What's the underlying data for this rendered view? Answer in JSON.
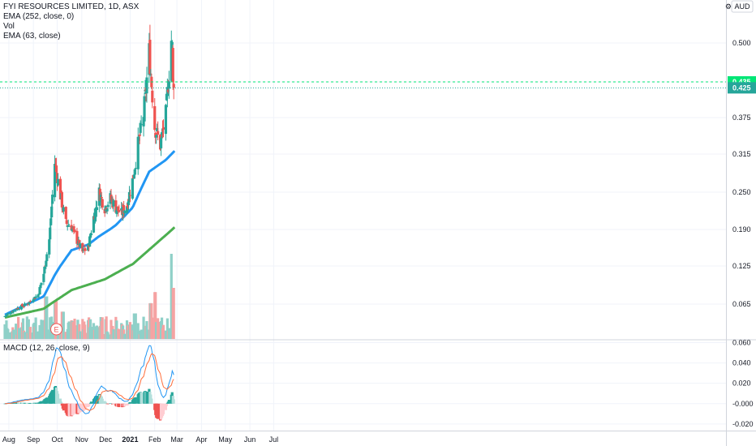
{
  "legend": {
    "title": "FYI RESOURCES LIMITED, 1D, ASX",
    "ema_long": "EMA (252, close, 0)",
    "vol": "Vol",
    "ema_mid": "EMA (63, close)",
    "macd": "MACD (12, 26, close, 9)"
  },
  "currency_label": "AUD",
  "earnings_marker": "E",
  "price_badges": {
    "green": "0.435",
    "teal": "0.425"
  },
  "colors": {
    "up": "#26a69a",
    "down": "#ef5350",
    "up_vol": "#8fd0c8",
    "down_vol": "#f5a3a3",
    "ema63": "#2196f3",
    "ema252": "#4caf50",
    "macd": "#2196f3",
    "signal": "#ff6d3a",
    "dashed_green": "#00e676",
    "dashed_teal": "#26a69a"
  },
  "chart_data": [
    {
      "type": "candlestick",
      "title": "FYI RESOURCES LIMITED, 1D, ASX",
      "y_ticks": [
        "0.500",
        "0.435",
        "0.375",
        "0.315",
        "0.250",
        "0.190",
        "0.125",
        "0.065"
      ],
      "x_ticks": [
        "Aug",
        "Sep",
        "Oct",
        "Nov",
        "Dec",
        "2021",
        "Feb",
        "Mar",
        "Apr",
        "May",
        "Jun",
        "Jul"
      ],
      "ylim": [
        0.013,
        0.548
      ],
      "series": [
        {
          "name": "EMA (63, close)",
          "type": "line"
        },
        {
          "name": "EMA (252, close, 0)",
          "type": "line"
        },
        {
          "name": "Vol",
          "type": "bar"
        }
      ],
      "close_anchors": [
        [
          "2020-07-27",
          0.047
        ],
        [
          "2020-08-10",
          0.058
        ],
        [
          "2020-08-24",
          0.065
        ],
        [
          "2020-09-07",
          0.08
        ],
        [
          "2020-09-14",
          0.113
        ],
        [
          "2020-09-21",
          0.172
        ],
        [
          "2020-09-28",
          0.3
        ],
        [
          "2020-10-05",
          0.245
        ],
        [
          "2020-10-12",
          0.2
        ],
        [
          "2020-10-19",
          0.195
        ],
        [
          "2020-10-26",
          0.17
        ],
        [
          "2020-11-02",
          0.15
        ],
        [
          "2020-11-09",
          0.158
        ],
        [
          "2020-11-16",
          0.21
        ],
        [
          "2020-11-23",
          0.25
        ],
        [
          "2020-11-30",
          0.225
        ],
        [
          "2020-12-07",
          0.24
        ],
        [
          "2020-12-14",
          0.225
        ],
        [
          "2020-12-21",
          0.215
        ],
        [
          "2020-12-28",
          0.23
        ],
        [
          "2021-01-04",
          0.27
        ],
        [
          "2021-01-11",
          0.33
        ],
        [
          "2021-01-18",
          0.38
        ],
        [
          "2021-01-25",
          0.485
        ],
        [
          "2021-02-01",
          0.36
        ],
        [
          "2021-02-08",
          0.33
        ],
        [
          "2021-02-15",
          0.38
        ],
        [
          "2021-02-22",
          0.505
        ],
        [
          "2021-03-01",
          0.41
        ],
        [
          "2021-03-08",
          0.425
        ]
      ],
      "ema63_anchors": [
        [
          "2020-07-27",
          0.049
        ],
        [
          "2020-09-14",
          0.077
        ],
        [
          "2020-09-28",
          0.111
        ],
        [
          "2020-10-19",
          0.153
        ],
        [
          "2020-11-09",
          0.163
        ],
        [
          "2020-11-23",
          0.178
        ],
        [
          "2020-12-14",
          0.197
        ],
        [
          "2021-01-04",
          0.225
        ],
        [
          "2021-01-25",
          0.285
        ],
        [
          "2021-02-15",
          0.305
        ],
        [
          "2021-03-08",
          0.334
        ]
      ],
      "ema252_anchors": [
        [
          "2020-07-27",
          0.045
        ],
        [
          "2020-09-14",
          0.058
        ],
        [
          "2020-10-19",
          0.087
        ],
        [
          "2020-11-30",
          0.104
        ],
        [
          "2021-01-04",
          0.128
        ],
        [
          "2021-01-25",
          0.154
        ],
        [
          "2021-02-15",
          0.18
        ],
        [
          "2021-03-08",
          0.206
        ]
      ],
      "volume_spikes": [
        [
          "2020-09-29",
          0.45
        ],
        [
          "2020-09-17",
          0.5
        ],
        [
          "2020-10-08",
          0.32
        ],
        [
          "2021-01-27",
          0.42
        ],
        [
          "2021-02-01",
          0.55
        ],
        [
          "2021-02-22",
          1.0
        ],
        [
          "2021-02-24",
          0.6
        ],
        [
          "2021-01-07",
          0.3
        ]
      ],
      "last_close": 0.425,
      "previous_close": 0.435
    },
    {
      "type": "line",
      "title": "MACD (12, 26, close, 9)",
      "y_ticks": [
        "0.060",
        "0.040",
        "0.020",
        "-0.000",
        "-0.020"
      ],
      "ylim": [
        -0.0265,
        0.062
      ],
      "series": [
        {
          "name": "MACD",
          "type": "line"
        },
        {
          "name": "Signal",
          "type": "line"
        },
        {
          "name": "Histogram",
          "type": "bar"
        }
      ]
    }
  ]
}
